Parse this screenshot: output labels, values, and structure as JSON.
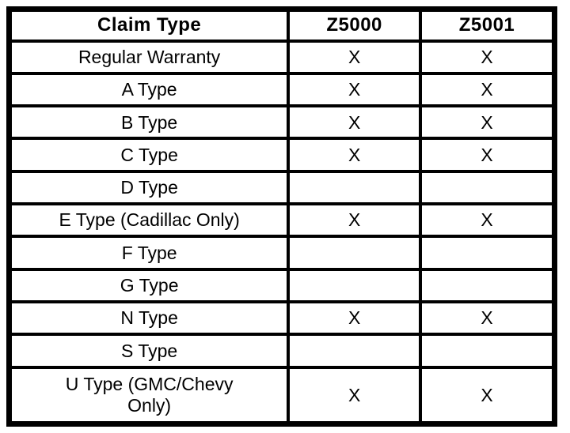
{
  "table": {
    "columns": [
      "Claim Type",
      "Z5000",
      "Z5001"
    ],
    "rows": [
      [
        "Regular Warranty",
        "X",
        "X"
      ],
      [
        "A Type",
        "X",
        "X"
      ],
      [
        "B Type",
        "X",
        "X"
      ],
      [
        "C Type",
        "X",
        "X"
      ],
      [
        "D Type",
        "",
        ""
      ],
      [
        "E Type (Cadillac Only)",
        "X",
        "X"
      ],
      [
        "F Type",
        "",
        ""
      ],
      [
        "G Type",
        "",
        ""
      ],
      [
        "N Type",
        "X",
        "X"
      ],
      [
        "S Type",
        "",
        ""
      ],
      [
        "U Type (GMC/Chevy Only)",
        "X",
        "X"
      ]
    ]
  },
  "colors": {
    "border": "#000000",
    "background": "#ffffff",
    "text": "#000000"
  }
}
